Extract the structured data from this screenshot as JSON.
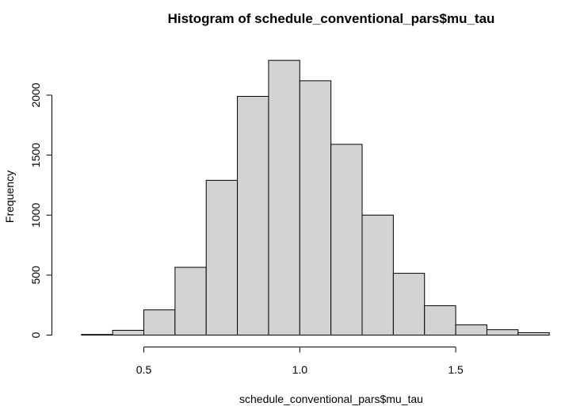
{
  "chart_data": {
    "type": "bar",
    "title": "Histogram of schedule_conventional_pars$mu_tau",
    "xlabel": "schedule_conventional_pars$mu_tau",
    "ylabel": "Frequency",
    "bin_edges": [
      0.3,
      0.4,
      0.5,
      0.6,
      0.7,
      0.8,
      0.9,
      1.0,
      1.1,
      1.2,
      1.3,
      1.4,
      1.5,
      1.6,
      1.7,
      1.8
    ],
    "values": [
      5,
      40,
      210,
      565,
      1290,
      1990,
      2290,
      2120,
      1590,
      1000,
      515,
      245,
      85,
      45,
      20
    ],
    "xticks": [
      0.5,
      1.0,
      1.5
    ],
    "xtick_labels": [
      "0.5",
      "1.0",
      "1.5"
    ],
    "yticks": [
      0,
      500,
      1000,
      1500,
      2000
    ],
    "ytick_labels": [
      "0",
      "500",
      "1000",
      "1500",
      "2000"
    ],
    "xlim": [
      0.3,
      1.8
    ],
    "ylim": [
      0,
      2290
    ],
    "bar_color": "#d3d3d3",
    "grid": false,
    "legend": "none"
  }
}
